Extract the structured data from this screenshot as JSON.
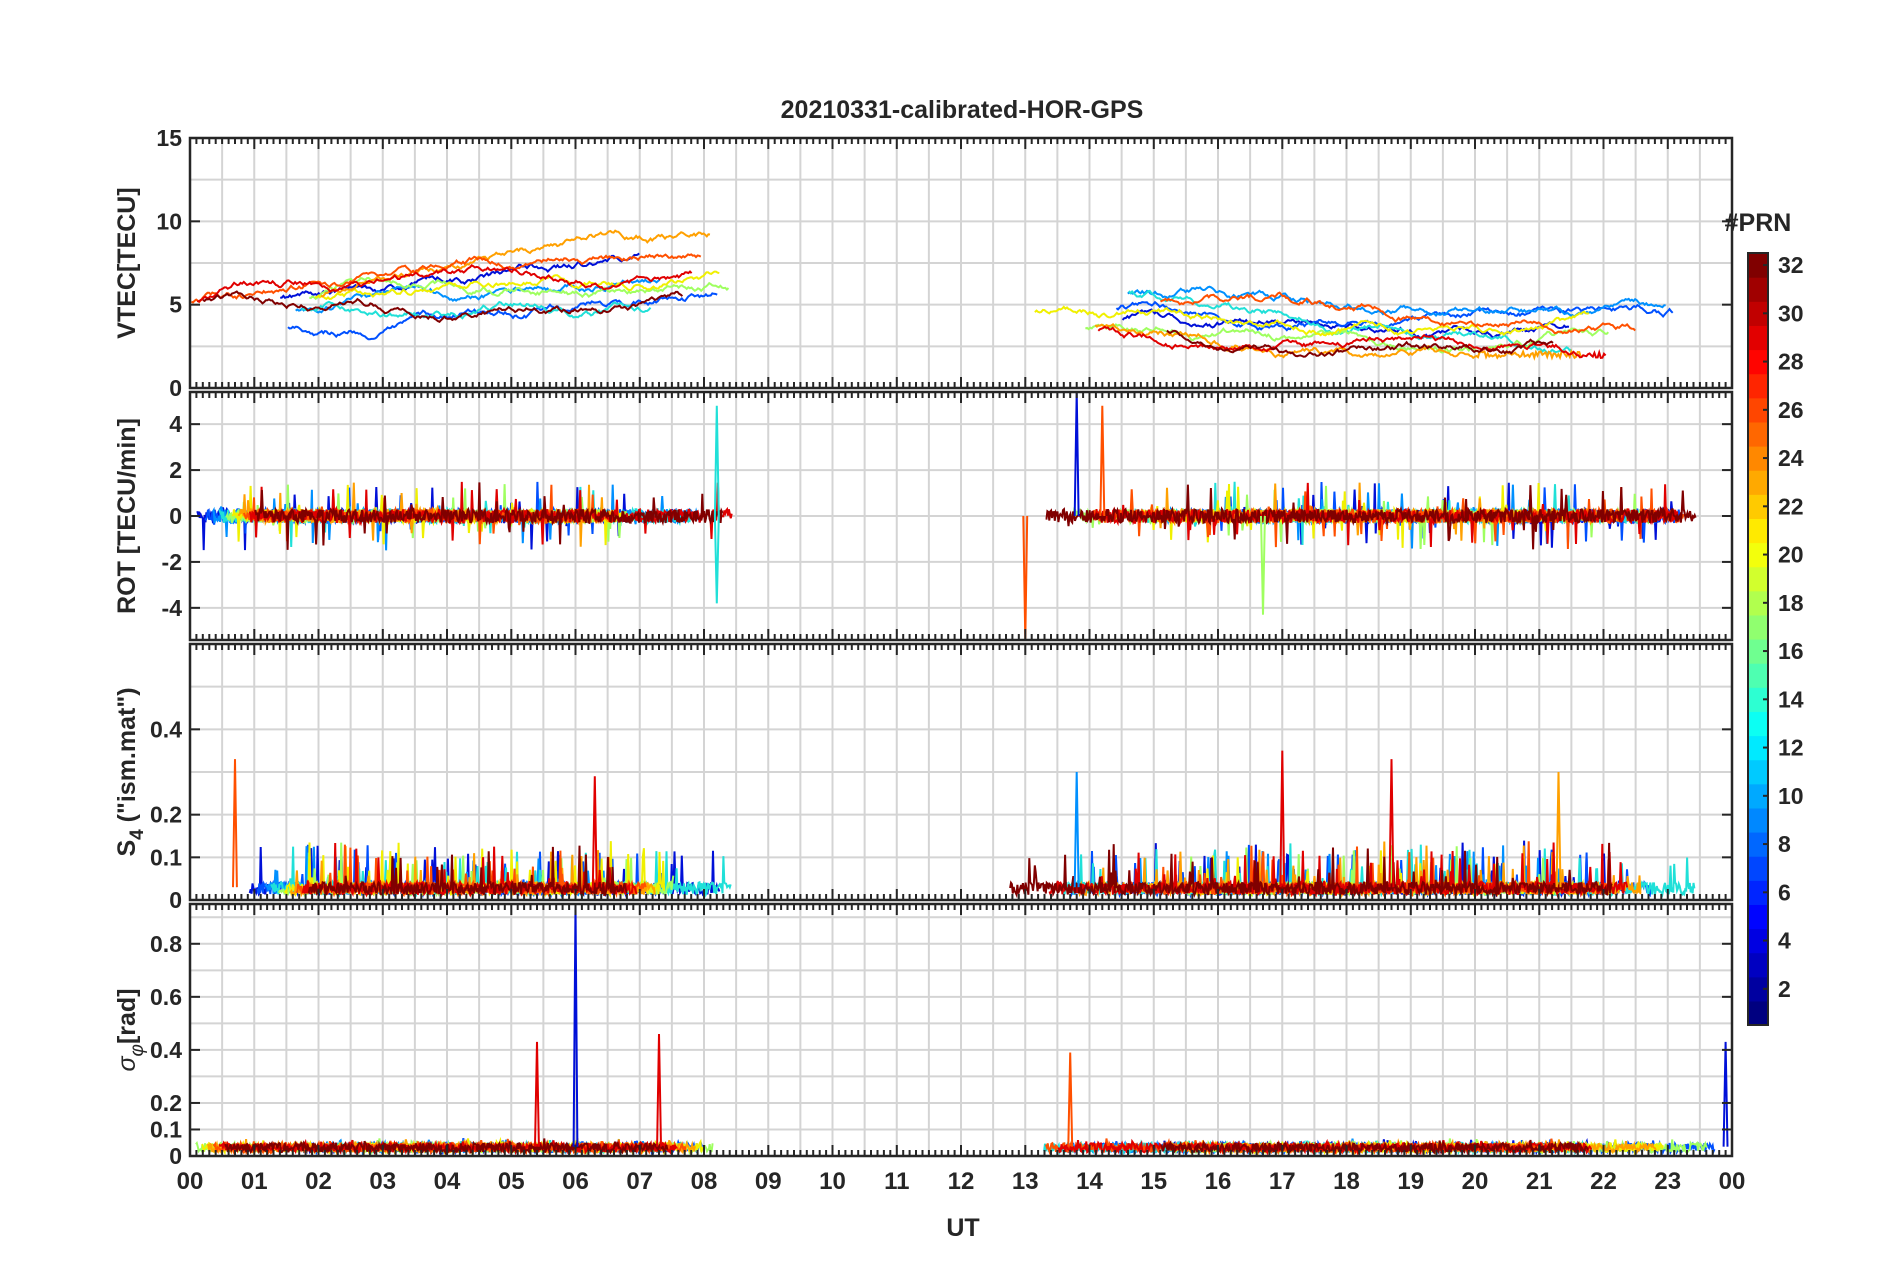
{
  "chart_data": {
    "type": "line",
    "title": "20210331-calibrated-HOR-GPS",
    "xlabel": "UT",
    "x_tick_labels": [
      "00",
      "01",
      "02",
      "03",
      "04",
      "05",
      "06",
      "07",
      "08",
      "09",
      "10",
      "11",
      "12",
      "13",
      "14",
      "15",
      "16",
      "17",
      "18",
      "19",
      "20",
      "21",
      "22",
      "23",
      "00"
    ],
    "xlim": [
      0,
      24
    ],
    "data_gaps_hours": [
      [
        8.45,
        12.75
      ]
    ],
    "colorbar": {
      "label": "#PRN",
      "range": [
        1,
        32
      ],
      "tick_labels": [
        "2",
        "4",
        "6",
        "8",
        "10",
        "12",
        "14",
        "16",
        "18",
        "20",
        "22",
        "24",
        "26",
        "28",
        "30",
        "32"
      ],
      "colormap": "jet"
    },
    "panels": [
      {
        "name": "vtec",
        "ylabel": "VTEC[TECU]",
        "ylim": [
          0,
          15
        ],
        "y_ticks": [
          0,
          5,
          10,
          15
        ],
        "y_tick_labels": [
          "0",
          "5",
          "10",
          "15"
        ],
        "grid_step": 2.5,
        "series_hint": {
          "shape": "smooth",
          "level_start": 4.5,
          "level_mid": 6.5,
          "spread": 2.5,
          "noise": 0.25
        }
      },
      {
        "name": "rot",
        "ylabel": "ROT [TECU/min]",
        "ylim": [
          -5.4,
          5.4
        ],
        "y_ticks": [
          -4,
          -2,
          0,
          2,
          4
        ],
        "y_tick_labels": [
          "-4",
          "-2",
          "0",
          "2",
          "4"
        ],
        "grid_step": 2,
        "series_hint": {
          "shape": "noise",
          "base": 0,
          "amplitude": 0.3
        }
      },
      {
        "name": "s4",
        "ylabel": "S4 (\"ism.mat\")",
        "ylim": [
          0,
          0.6
        ],
        "y_ticks": [
          0,
          0.1,
          0.2,
          0.4
        ],
        "y_tick_labels": [
          "0",
          "0.1",
          "0.2",
          "0.4"
        ],
        "grid_step": 0.1,
        "series_hint": {
          "shape": "spiky",
          "base": 0.03,
          "amplitude": 0.05
        }
      },
      {
        "name": "sigma_phi",
        "ylabel": "σφ[rad]",
        "ylim": [
          0,
          0.95
        ],
        "y_ticks": [
          0,
          0.1,
          0.2,
          0.4,
          0.6,
          0.8
        ],
        "y_tick_labels": [
          "0",
          "0.1",
          "0.2",
          "0.4",
          "0.6",
          "0.8"
        ],
        "grid_step": 0.1,
        "series_hint": {
          "shape": "spiky",
          "base": 0.035,
          "amplitude": 0.01
        }
      }
    ],
    "prn_series": [
      {
        "prn": 2,
        "color": "#0010d8"
      },
      {
        "prn": 6,
        "color": "#0050ff"
      },
      {
        "prn": 10,
        "color": "#0090ff"
      },
      {
        "prn": 13,
        "color": "#20e0d8"
      },
      {
        "prn": 17,
        "color": "#9fff60"
      },
      {
        "prn": 20,
        "color": "#f0f000"
      },
      {
        "prn": 23,
        "color": "#ffa000"
      },
      {
        "prn": 26,
        "color": "#ff5000"
      },
      {
        "prn": 29,
        "color": "#e00000"
      },
      {
        "prn": 32,
        "color": "#800000"
      }
    ],
    "notable_spikes": [
      {
        "panel": "rot",
        "hour": 8.2,
        "value": 4.8,
        "prn": 13
      },
      {
        "panel": "rot",
        "hour": 8.2,
        "value": -3.8,
        "prn": 13
      },
      {
        "panel": "rot",
        "hour": 13.0,
        "value": -5.4,
        "prn": 26
      },
      {
        "panel": "rot",
        "hour": 13.8,
        "value": 5.4,
        "prn": 2
      },
      {
        "panel": "rot",
        "hour": 14.2,
        "value": 4.8,
        "prn": 26
      },
      {
        "panel": "rot",
        "hour": 16.7,
        "value": -4.3,
        "prn": 17
      },
      {
        "panel": "s4",
        "hour": 0.7,
        "value": 0.33,
        "prn": 26
      },
      {
        "panel": "s4",
        "hour": 6.3,
        "value": 0.29,
        "prn": 29
      },
      {
        "panel": "s4",
        "hour": 13.8,
        "value": 0.3,
        "prn": 10
      },
      {
        "panel": "s4",
        "hour": 17.0,
        "value": 0.35,
        "prn": 29
      },
      {
        "panel": "s4",
        "hour": 18.7,
        "value": 0.33,
        "prn": 29
      },
      {
        "panel": "s4",
        "hour": 21.3,
        "value": 0.3,
        "prn": 23
      },
      {
        "panel": "sigma_phi",
        "hour": 5.4,
        "value": 0.43,
        "prn": 29
      },
      {
        "panel": "sigma_phi",
        "hour": 6.0,
        "value": 0.95,
        "prn": 2
      },
      {
        "panel": "sigma_phi",
        "hour": 7.3,
        "value": 0.46,
        "prn": 29
      },
      {
        "panel": "sigma_phi",
        "hour": 13.7,
        "value": 0.39,
        "prn": 26
      },
      {
        "panel": "sigma_phi",
        "hour": 23.9,
        "value": 0.43,
        "prn": 2
      }
    ]
  }
}
